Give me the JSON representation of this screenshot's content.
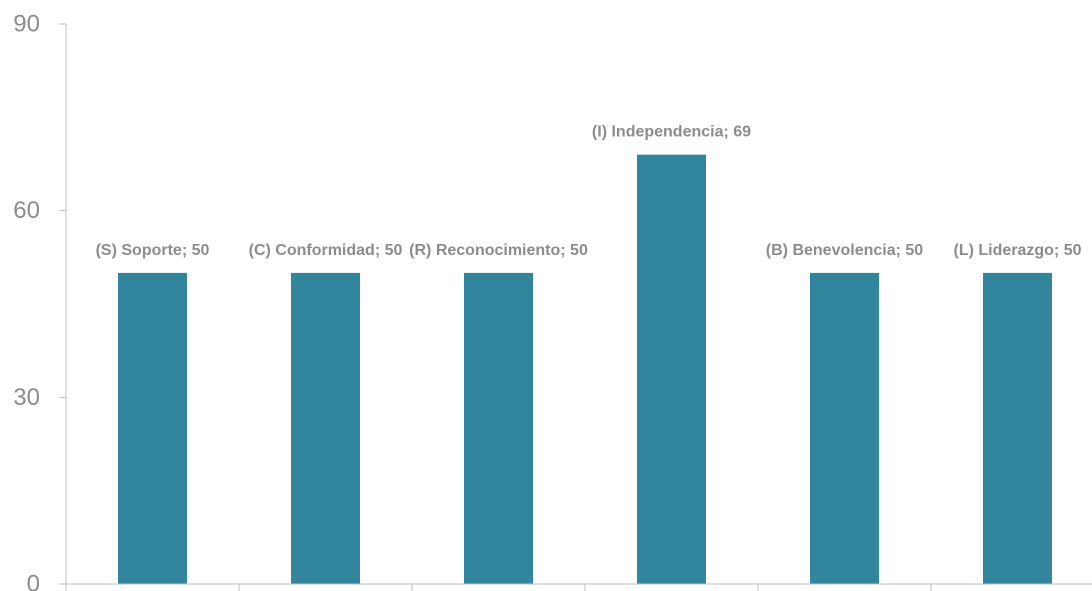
{
  "chart_data": {
    "type": "bar",
    "categories": [
      "(S) Soporte",
      "(C) Conformidad",
      "(R) Reconocimiento",
      "(I) Independencia",
      "(B) Benevolencia",
      "(L) Liderazgo"
    ],
    "values": [
      50,
      50,
      50,
      69,
      50,
      50
    ],
    "data_labels": [
      "(S) Soporte; 50",
      "(C) Conformidad; 50",
      "(R) Reconocimiento; 50",
      "(I) Independencia; 69",
      "(B) Benevolencia; 50",
      "(L) Liderazgo; 50"
    ],
    "ylim": [
      0,
      90
    ],
    "yticks": [
      0,
      30,
      60,
      90
    ],
    "ytick_labels": [
      "0",
      "30",
      "60",
      "90"
    ],
    "grid": false,
    "legend": "none",
    "title": "",
    "xlabel": "",
    "ylabel": "",
    "colors": {
      "bar": "#31859c",
      "axis": "#bfbfbf",
      "text": "#8c8c8c"
    }
  }
}
